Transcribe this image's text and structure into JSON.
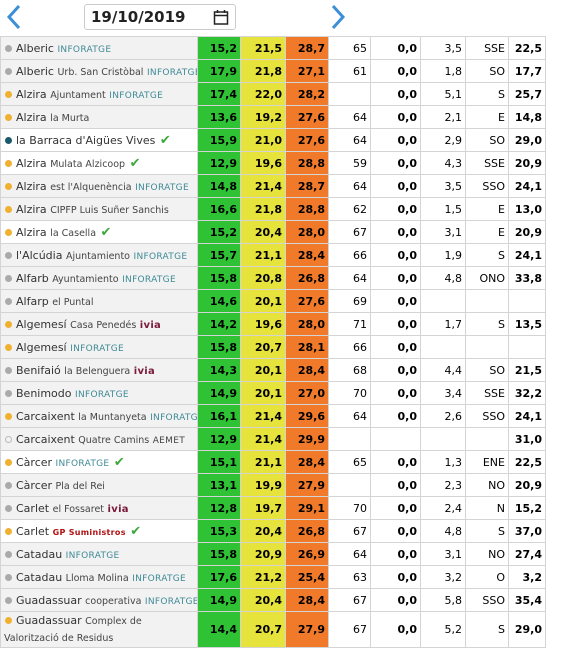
{
  "header": {
    "date": "19/10/2019"
  },
  "rows": [
    {
      "dot": "#aaaaaa",
      "name": "Alberic",
      "provider": "INFORATGE",
      "values": [
        "15,2",
        "21,5",
        "28,7",
        "65",
        "0,0",
        "3,5",
        "SSE",
        "22,5"
      ]
    },
    {
      "dot": "#aaaaaa",
      "name": "Alberic",
      "sub": "Urb. San Cristòbal",
      "provider": "INFORATGE",
      "values": [
        "17,9",
        "21,8",
        "27,1",
        "61",
        "0,0",
        "1,8",
        "SO",
        "17,7"
      ]
    },
    {
      "dot": "#f0b030",
      "name": "Alzira",
      "sub": "Ajuntament",
      "provider": "INFORATGE",
      "values": [
        "17,4",
        "22,0",
        "28,2",
        null,
        "0,0",
        "5,1",
        "S",
        "25,7"
      ]
    },
    {
      "dot": "#f0b030",
      "name": "Alzira",
      "sub": "la Murta",
      "values": [
        "13,6",
        "19,2",
        "27,6",
        "64",
        "0,0",
        "2,1",
        "E",
        "14,8"
      ]
    },
    {
      "dot": "#1a5a6a",
      "name": "la Barraca d'Aigües Vives",
      "check": true,
      "values": [
        "15,9",
        "21,0",
        "27,6",
        "64",
        "0,0",
        "2,9",
        "SO",
        "29,0"
      ]
    },
    {
      "dot": "#f0b030",
      "name": "Alzira",
      "sub": "Mulata Alzicoop",
      "check": true,
      "values": [
        "12,9",
        "19,6",
        "28,8",
        "59",
        "0,0",
        "4,3",
        "SSE",
        "20,9"
      ]
    },
    {
      "dot": "#f0b030",
      "name": "Alzira",
      "sub": "est l'Alquenència",
      "provider": "INFORATGE",
      "values": [
        "14,8",
        "21,4",
        "28,7",
        "64",
        "0,0",
        "3,5",
        "SSO",
        "24,1"
      ]
    },
    {
      "dot": "#f0b030",
      "name": "Alzira",
      "sub": "CIPFP Luis Suñer Sanchis",
      "values": [
        "16,6",
        "21,8",
        "28,8",
        "62",
        "0,0",
        "1,5",
        "E",
        "13,0"
      ]
    },
    {
      "dot": "#f0b030",
      "name": "Alzira",
      "sub": "la Casella",
      "check": true,
      "values": [
        "15,2",
        "20,4",
        "28,0",
        "67",
        "0,0",
        "3,1",
        "E",
        "20,9"
      ]
    },
    {
      "dot": "#aaaaaa",
      "name": "l'Alcúdia",
      "sub": "Ajuntamiento",
      "provider": "INFORATGE",
      "values": [
        "15,7",
        "21,1",
        "28,4",
        "66",
        "0,0",
        "1,9",
        "S",
        "24,1"
      ]
    },
    {
      "dot": "#aaaaaa",
      "name": "Alfarb",
      "sub": "Ayuntamiento",
      "provider": "INFORATGE",
      "values": [
        "15,8",
        "20,8",
        "26,8",
        "64",
        "0,0",
        "4,8",
        "ONO",
        "33,8"
      ]
    },
    {
      "dot": "#aaaaaa",
      "name": "Alfarp",
      "sub": "el Puntal",
      "values": [
        "14,6",
        "20,1",
        "27,6",
        "69",
        "0,0",
        null,
        null,
        null
      ]
    },
    {
      "dot": "#f0b030",
      "name": "Algemesí",
      "sub": "Casa Penedés",
      "provider": "ivia",
      "values": [
        "14,2",
        "19,6",
        "28,0",
        "71",
        "0,0",
        "1,7",
        "S",
        "13,5"
      ]
    },
    {
      "dot": "#f0b030",
      "name": "Algemesí",
      "provider": "INFORATGE",
      "values": [
        "15,8",
        "20,7",
        "28,1",
        "66",
        "0,0",
        null,
        null,
        null
      ]
    },
    {
      "dot": "#aaaaaa",
      "name": "Benifaió",
      "sub": "la Belenguera",
      "provider": "ivia",
      "values": [
        "14,3",
        "20,1",
        "28,4",
        "68",
        "0,0",
        "4,4",
        "SO",
        "21,5"
      ]
    },
    {
      "dot": "#aaaaaa",
      "name": "Benimodo",
      "provider": "INFORATGE",
      "values": [
        "14,9",
        "20,1",
        "27,0",
        "70",
        "0,0",
        "3,4",
        "SSE",
        "32,2"
      ]
    },
    {
      "dot": "#f0b030",
      "name": "Carcaixent",
      "sub": "la Muntanyeta",
      "provider": "INFORATGE",
      "values": [
        "16,1",
        "21,4",
        "29,6",
        "64",
        "0,0",
        "2,6",
        "SSO",
        "24,1"
      ]
    },
    {
      "dot": "none",
      "name": "Carcaixent",
      "sub": "Quatre Camins",
      "provider": "AEMET",
      "values": [
        "12,9",
        "21,4",
        "29,9",
        null,
        null,
        null,
        null,
        "31,0"
      ]
    },
    {
      "dot": "#f0b030",
      "name": "Càrcer",
      "provider": "INFORATGE",
      "check": true,
      "values": [
        "15,1",
        "21,1",
        "28,4",
        "65",
        "0,0",
        "1,3",
        "ENE",
        "22,5"
      ]
    },
    {
      "dot": "#aaaaaa",
      "name": "Càrcer",
      "sub": "Pla del Rei",
      "values": [
        "13,1",
        "19,9",
        "27,9",
        null,
        "0,0",
        "2,3",
        "NO",
        "20,9"
      ]
    },
    {
      "dot": "#aaaaaa",
      "name": "Carlet",
      "sub": "el Fossaret",
      "provider": "ivia",
      "values": [
        "12,8",
        "19,7",
        "29,1",
        "70",
        "0,0",
        "2,4",
        "N",
        "15,2"
      ]
    },
    {
      "dot": "#f0b030",
      "name": "Carlet",
      "provider": "GP Suministros",
      "check": true,
      "values": [
        "15,3",
        "20,4",
        "26,8",
        "67",
        "0,0",
        "4,8",
        "S",
        "37,0"
      ]
    },
    {
      "dot": "#aaaaaa",
      "name": "Catadau",
      "provider": "INFORATGE",
      "values": [
        "15,8",
        "20,9",
        "26,9",
        "64",
        "0,0",
        "3,1",
        "NO",
        "27,4"
      ]
    },
    {
      "dot": "#aaaaaa",
      "name": "Catadau",
      "sub": "Lloma Molina",
      "provider": "INFORATGE",
      "values": [
        "17,6",
        "21,2",
        "25,4",
        "63",
        "0,0",
        "3,2",
        "O",
        "3,2"
      ]
    },
    {
      "dot": "#aaaaaa",
      "name": "Guadassuar",
      "sub": "cooperativa",
      "provider": "INFORATGE",
      "values": [
        "14,9",
        "20,4",
        "28,4",
        "67",
        "0,0",
        "5,8",
        "SSO",
        "35,4"
      ]
    },
    {
      "dot": "#f0b030",
      "name": "Guadassuar",
      "sub": "Complex de Valorització de Residus",
      "values": [
        "14,4",
        "20,7",
        "27,9",
        "67",
        "0,0",
        "5,2",
        "S",
        "29,0"
      ]
    }
  ]
}
